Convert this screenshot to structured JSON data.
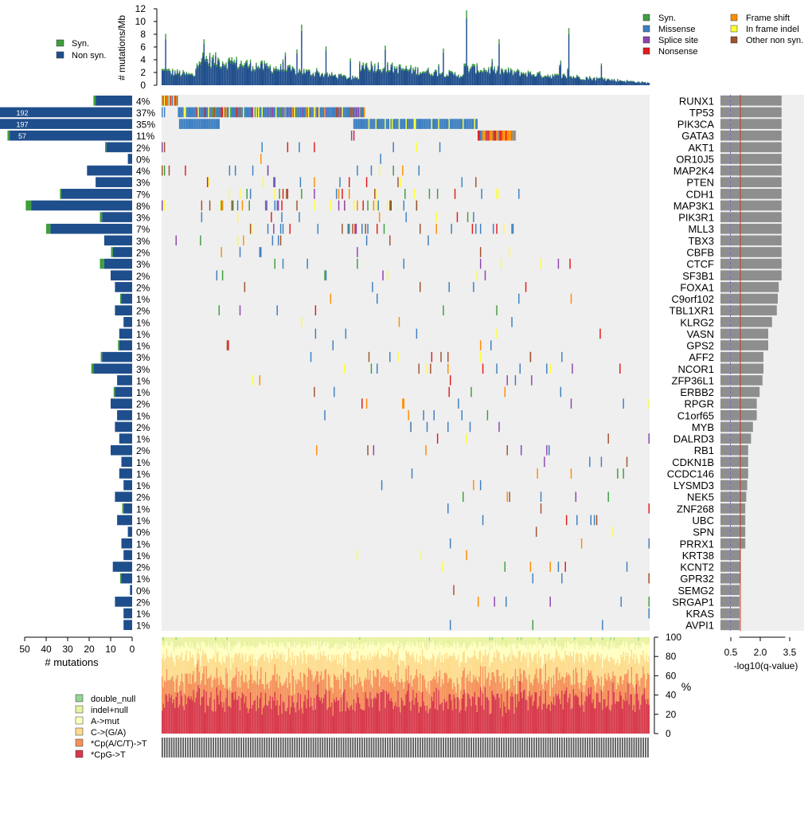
{
  "colors": {
    "syn": "#3E9E3E",
    "non_syn": "#1F4E8C",
    "missense": "#3C7FC1",
    "splice_site": "#8E44AD",
    "nonsense": "#E31A1C",
    "frame_shift": "#FF8C00",
    "in_frame_indel": "#FFFF33",
    "other_non_syn": "#A0522D",
    "matrix_bg": "#EFEFEF",
    "qbar": "#8E8E8E",
    "threshold_red": "#C0392B",
    "threshold_dashed": "#7B68C8",
    "double_null": "#96D396",
    "indel_null": "#E9F2A0",
    "a_mut": "#FFFFC0",
    "c_ga": "#FDDC8C",
    "cpacpt": "#F5925A",
    "cpg": "#D7394A"
  },
  "chart_data": {
    "type": "oncoprint",
    "top_panel": {
      "ylabel": "# mutations/Mb",
      "y_ticks": [
        "0",
        "2",
        "4",
        "6",
        "8",
        "10",
        "12"
      ],
      "ylim": [
        0,
        12
      ],
      "legend": [
        "Syn.",
        "Non syn."
      ]
    },
    "mutation_legend": [
      "Syn.",
      "Missense",
      "Splice site",
      "Nonsense",
      "Frame shift",
      "In frame indel",
      "Other non syn."
    ],
    "left_panel": {
      "xlabel": "# mutations",
      "x_ticks": [
        "50",
        "40",
        "30",
        "20",
        "10",
        "0"
      ],
      "xlim": [
        0,
        55
      ]
    },
    "right_panel": {
      "xlabel": "-log10(q-value)",
      "x_ticks": [
        "0.5",
        "2.0",
        "3.5"
      ],
      "xlim": [
        0,
        4.2
      ],
      "threshold_red": 1.0,
      "threshold_dashed": 0.5
    },
    "genes": [
      {
        "name": "RUNX1",
        "pct": "4%",
        "nonsyn": 17,
        "syn": 1,
        "label": "",
        "q": 3.2
      },
      {
        "name": "TP53",
        "pct": "37%",
        "nonsyn": 192,
        "syn": 0,
        "label": "192",
        "q": 3.2
      },
      {
        "name": "PIK3CA",
        "pct": "35%",
        "nonsyn": 197,
        "syn": 0,
        "label": "197",
        "q": 3.2
      },
      {
        "name": "GATA3",
        "pct": "11%",
        "nonsyn": 57,
        "syn": 1,
        "label": "57",
        "q": 3.2
      },
      {
        "name": "AKT1",
        "pct": "2%",
        "nonsyn": 12,
        "syn": 0.6,
        "label": "",
        "q": 3.2
      },
      {
        "name": "OR10J5",
        "pct": "0%",
        "nonsyn": 2,
        "syn": 0,
        "label": "",
        "q": 3.2
      },
      {
        "name": "MAP2K4",
        "pct": "4%",
        "nonsyn": 21,
        "syn": 0,
        "label": "",
        "q": 3.2
      },
      {
        "name": "PTEN",
        "pct": "3%",
        "nonsyn": 17,
        "syn": 0,
        "label": "",
        "q": 3.2
      },
      {
        "name": "CDH1",
        "pct": "7%",
        "nonsyn": 33,
        "syn": 0.6,
        "label": "",
        "q": 3.2
      },
      {
        "name": "MAP3K1",
        "pct": "8%",
        "nonsyn": 47,
        "syn": 2.5,
        "label": "",
        "q": 3.2
      },
      {
        "name": "PIK3R1",
        "pct": "3%",
        "nonsyn": 14,
        "syn": 1,
        "label": "",
        "q": 3.2
      },
      {
        "name": "MLL3",
        "pct": "7%",
        "nonsyn": 38,
        "syn": 2,
        "label": "",
        "q": 3.2
      },
      {
        "name": "TBX3",
        "pct": "3%",
        "nonsyn": 13,
        "syn": 0,
        "label": "",
        "q": 3.2
      },
      {
        "name": "CBFB",
        "pct": "2%",
        "nonsyn": 9,
        "syn": 0.8,
        "label": "",
        "q": 3.2
      },
      {
        "name": "CTCF",
        "pct": "3%",
        "nonsyn": 13,
        "syn": 2,
        "label": "",
        "q": 3.2
      },
      {
        "name": "SF3B1",
        "pct": "2%",
        "nonsyn": 10,
        "syn": 0,
        "label": "",
        "q": 3.2
      },
      {
        "name": "FOXA1",
        "pct": "2%",
        "nonsyn": 8,
        "syn": 0,
        "label": "",
        "q": 3.05
      },
      {
        "name": "C9orf102",
        "pct": "1%",
        "nonsyn": 5,
        "syn": 0.6,
        "label": "",
        "q": 3.0
      },
      {
        "name": "TBL1XR1",
        "pct": "2%",
        "nonsyn": 8,
        "syn": 0,
        "label": "",
        "q": 2.95
      },
      {
        "name": "KLRG2",
        "pct": "1%",
        "nonsyn": 4,
        "syn": 0,
        "label": "",
        "q": 2.7
      },
      {
        "name": "VASN",
        "pct": "1%",
        "nonsyn": 6,
        "syn": 0,
        "label": "",
        "q": 2.5
      },
      {
        "name": "GPS2",
        "pct": "1%",
        "nonsyn": 6,
        "syn": 0.6,
        "label": "",
        "q": 2.5
      },
      {
        "name": "AFF2",
        "pct": "3%",
        "nonsyn": 14,
        "syn": 0.6,
        "label": "",
        "q": 2.25
      },
      {
        "name": "NCOR1",
        "pct": "3%",
        "nonsyn": 18,
        "syn": 1,
        "label": "",
        "q": 2.25
      },
      {
        "name": "ZFP36L1",
        "pct": "1%",
        "nonsyn": 7,
        "syn": 0,
        "label": "",
        "q": 2.2
      },
      {
        "name": "ERBB2",
        "pct": "1%",
        "nonsyn": 8,
        "syn": 0.6,
        "label": "",
        "q": 2.05
      },
      {
        "name": "RPGR",
        "pct": "2%",
        "nonsyn": 10,
        "syn": 0,
        "label": "",
        "q": 1.9
      },
      {
        "name": "C1orf65",
        "pct": "1%",
        "nonsyn": 7,
        "syn": 0,
        "label": "",
        "q": 1.9
      },
      {
        "name": "MYB",
        "pct": "2%",
        "nonsyn": 8,
        "syn": 0,
        "label": "",
        "q": 1.7
      },
      {
        "name": "DALRD3",
        "pct": "1%",
        "nonsyn": 6,
        "syn": 0,
        "label": "",
        "q": 1.6
      },
      {
        "name": "RB1",
        "pct": "2%",
        "nonsyn": 10,
        "syn": 0,
        "label": "",
        "q": 1.45
      },
      {
        "name": "CDKN1B",
        "pct": "1%",
        "nonsyn": 5,
        "syn": 0,
        "label": "",
        "q": 1.45
      },
      {
        "name": "CCDC146",
        "pct": "1%",
        "nonsyn": 6,
        "syn": 0,
        "label": "",
        "q": 1.45
      },
      {
        "name": "LYSMD3",
        "pct": "1%",
        "nonsyn": 4,
        "syn": 0,
        "label": "",
        "q": 1.4
      },
      {
        "name": "NEK5",
        "pct": "2%",
        "nonsyn": 8,
        "syn": 0,
        "label": "",
        "q": 1.35
      },
      {
        "name": "ZNF268",
        "pct": "1%",
        "nonsyn": 4,
        "syn": 0.6,
        "label": "",
        "q": 1.3
      },
      {
        "name": "UBC",
        "pct": "1%",
        "nonsyn": 7,
        "syn": 0,
        "label": "",
        "q": 1.3
      },
      {
        "name": "SPN",
        "pct": "0%",
        "nonsyn": 2,
        "syn": 0,
        "label": "",
        "q": 1.3
      },
      {
        "name": "PRRX1",
        "pct": "1%",
        "nonsyn": 5,
        "syn": 0,
        "label": "",
        "q": 1.3
      },
      {
        "name": "KRT38",
        "pct": "1%",
        "nonsyn": 4,
        "syn": 0,
        "label": "",
        "q": 1.05
      },
      {
        "name": "KCNT2",
        "pct": "2%",
        "nonsyn": 9,
        "syn": 0,
        "label": "",
        "q": 1.05
      },
      {
        "name": "GPR32",
        "pct": "1%",
        "nonsyn": 5,
        "syn": 0.6,
        "label": "",
        "q": 1.05
      },
      {
        "name": "SEMG2",
        "pct": "0%",
        "nonsyn": 1,
        "syn": 0,
        "label": "",
        "q": 1.0
      },
      {
        "name": "SRGAP1",
        "pct": "2%",
        "nonsyn": 8,
        "syn": 0,
        "label": "",
        "q": 1.0
      },
      {
        "name": "KRAS",
        "pct": "1%",
        "nonsyn": 4,
        "syn": 0,
        "label": "",
        "q": 1.0
      },
      {
        "name": "AVPI1",
        "pct": "1%",
        "nonsyn": 4,
        "syn": 0,
        "label": "",
        "q": 1.0
      }
    ],
    "bottom_panel": {
      "ylabel": "%",
      "y_ticks": [
        "0",
        "20",
        "40",
        "60",
        "80",
        "100"
      ],
      "ylim": [
        0,
        100
      ],
      "categories": [
        "double_null",
        "indel+null",
        "A->mut",
        "C->(G/A)",
        "*Cp(A/C/T)->T",
        "*CpG->T"
      ],
      "mean_fractions": [
        0.01,
        0.08,
        0.12,
        0.22,
        0.22,
        0.35
      ]
    }
  }
}
